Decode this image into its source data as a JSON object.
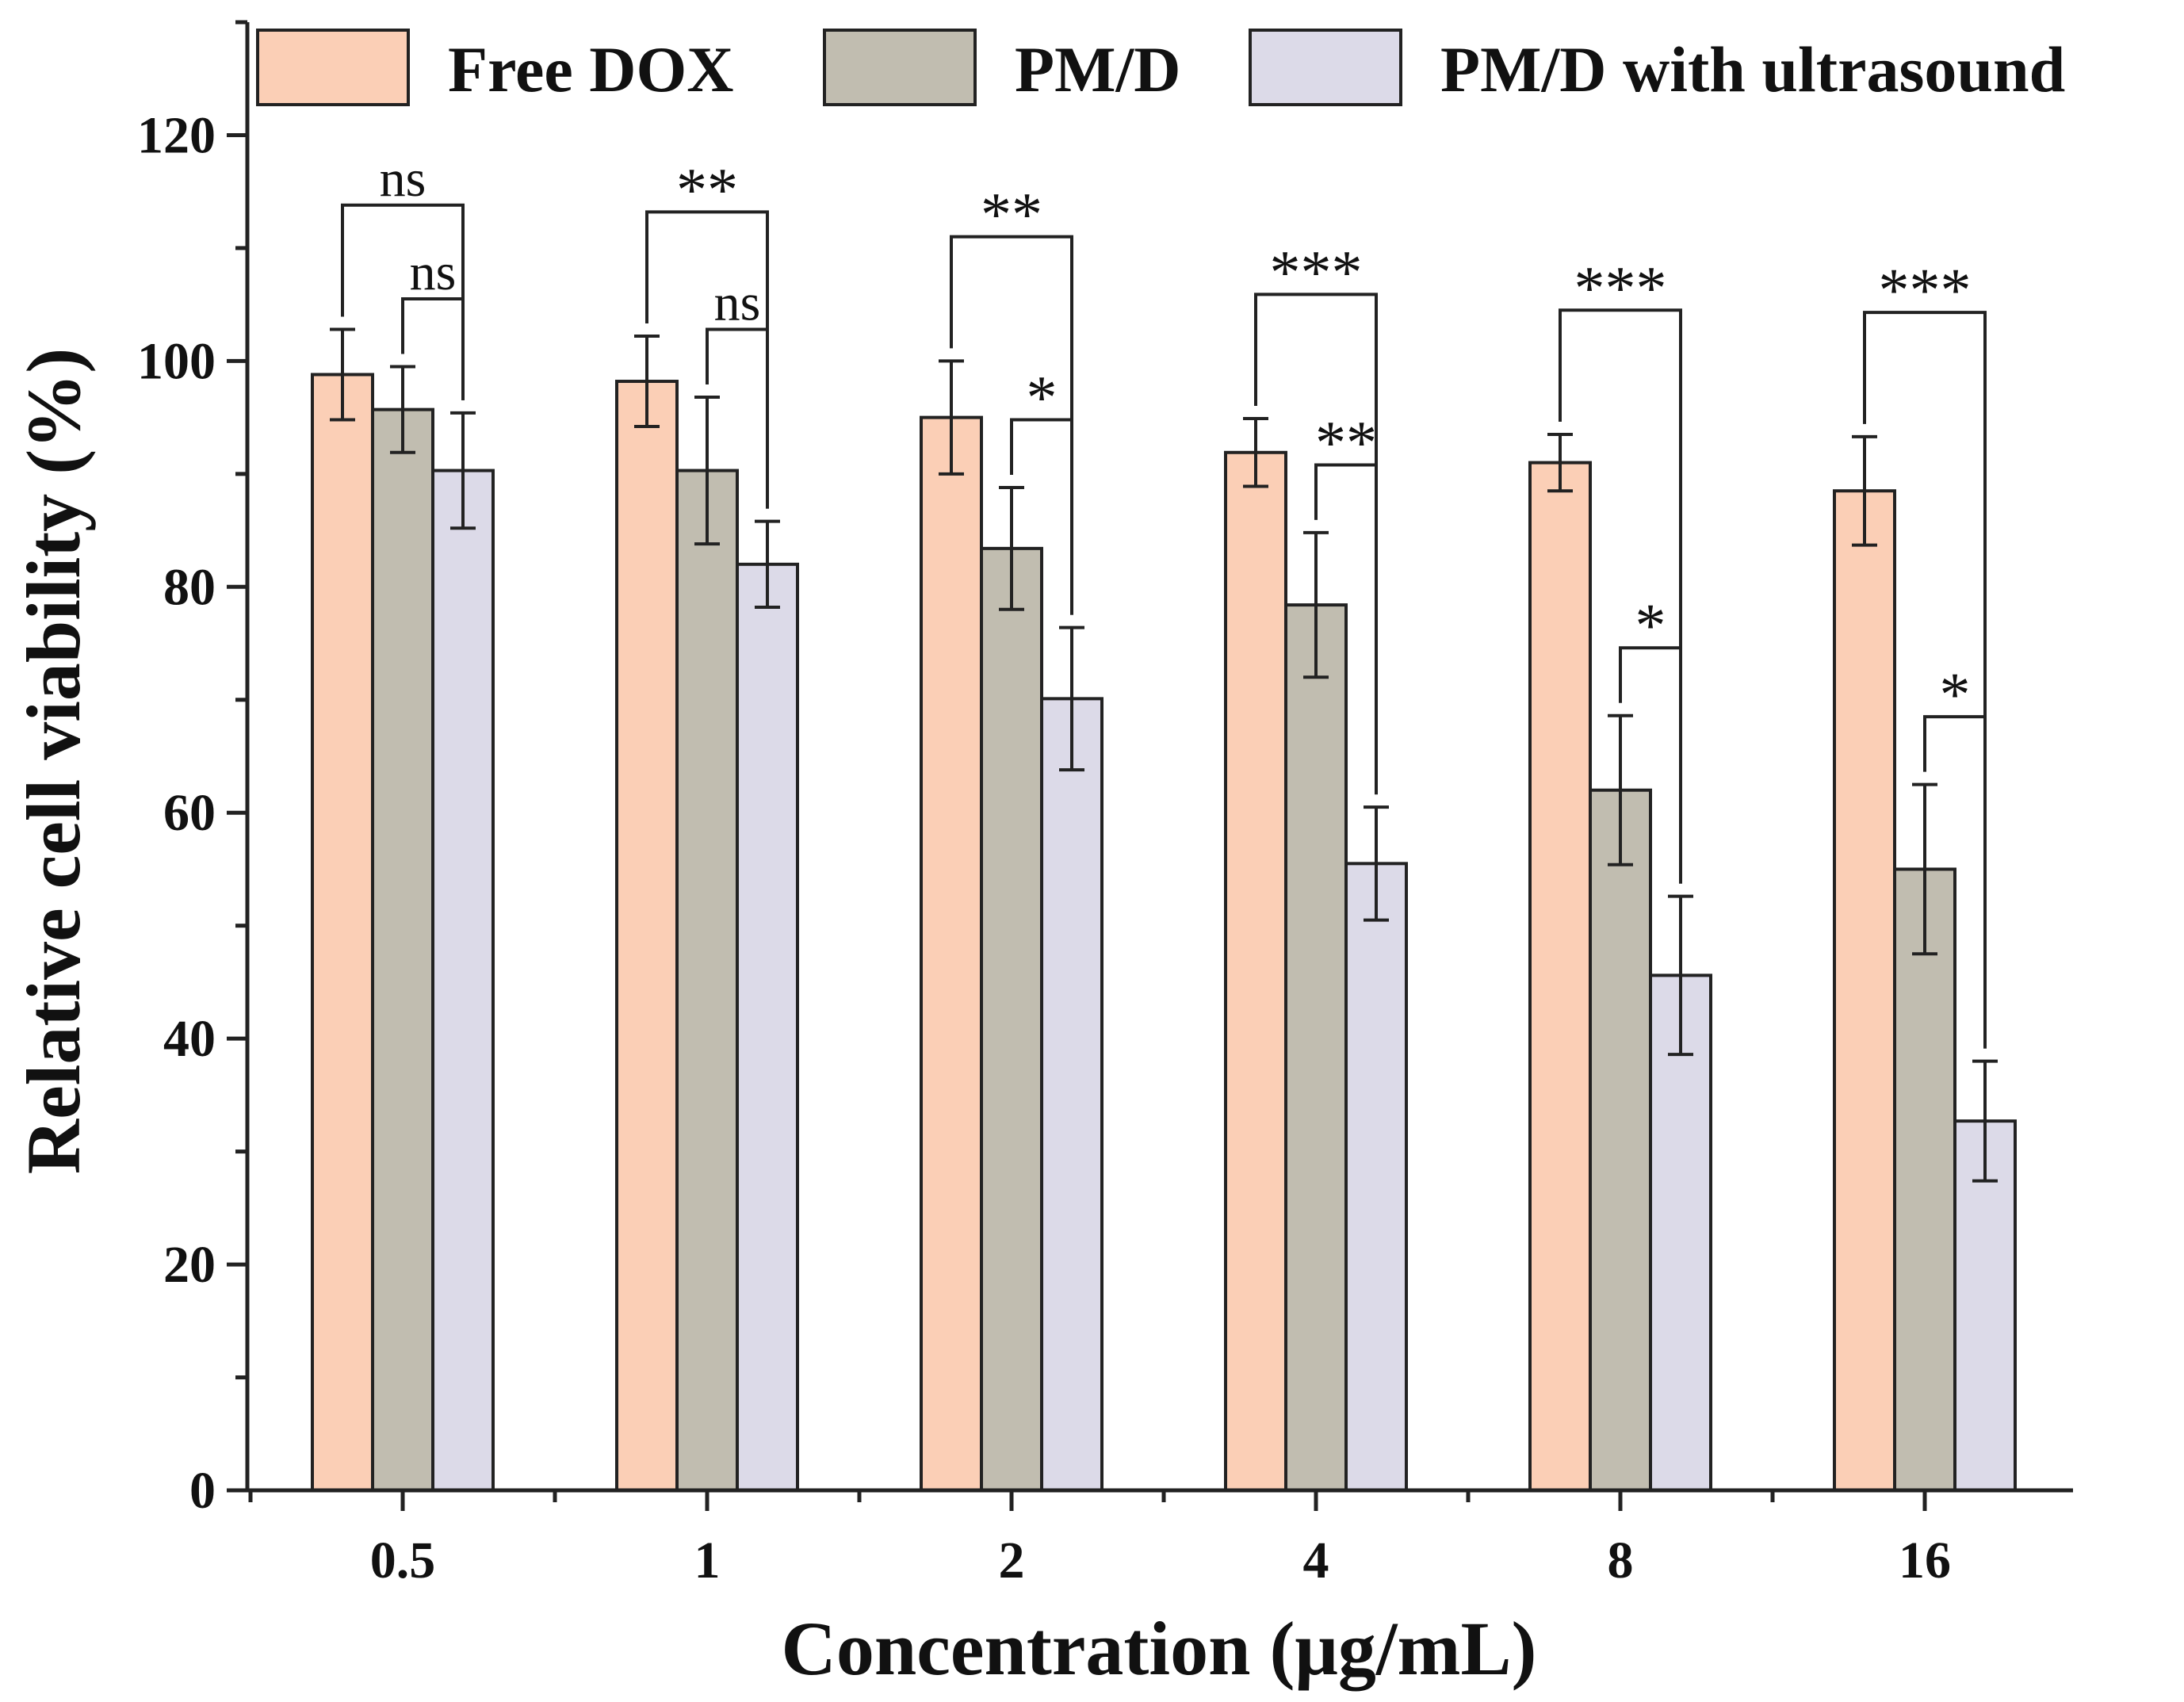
{
  "chart_data": {
    "type": "bar",
    "title": "",
    "xlabel": "Concentration (μg/mL)",
    "ylabel": "Relative cell viability (%)",
    "ylim": [
      0,
      130
    ],
    "yticks": [
      0,
      20,
      40,
      60,
      80,
      100,
      120
    ],
    "categories": [
      "0.5",
      "1",
      "2",
      "4",
      "8",
      "16"
    ],
    "legend_position": "top",
    "grid": false,
    "series": [
      {
        "name": "Free DOX",
        "color": "#FBCFB6",
        "values": [
          98.8,
          98.2,
          95.0,
          91.9,
          91.0,
          88.5
        ],
        "errors": [
          4.0,
          4.0,
          5.0,
          3.0,
          2.5,
          4.8
        ]
      },
      {
        "name": "PM/D",
        "color": "#C1BDB0",
        "values": [
          95.7,
          90.3,
          83.4,
          78.4,
          62.0,
          55.0
        ],
        "errors": [
          3.8,
          6.5,
          5.4,
          6.4,
          6.6,
          7.5
        ]
      },
      {
        "name": "PM/D with ultrasound",
        "color": "#DCDAE8",
        "values": [
          90.3,
          82.0,
          70.1,
          55.5,
          45.6,
          32.7
        ],
        "errors": [
          5.1,
          3.8,
          6.3,
          5.0,
          7.0,
          5.3
        ]
      }
    ],
    "significance": [
      {
        "category": "0.5",
        "from": 0,
        "to": 2,
        "label": "ns"
      },
      {
        "category": "0.5",
        "from": 1,
        "to": 2,
        "label": "ns"
      },
      {
        "category": "1",
        "from": 0,
        "to": 2,
        "label": "**"
      },
      {
        "category": "1",
        "from": 1,
        "to": 2,
        "label": "ns"
      },
      {
        "category": "2",
        "from": 0,
        "to": 2,
        "label": "**"
      },
      {
        "category": "2",
        "from": 1,
        "to": 2,
        "label": "*"
      },
      {
        "category": "4",
        "from": 0,
        "to": 2,
        "label": "***"
      },
      {
        "category": "4",
        "from": 1,
        "to": 2,
        "label": "**"
      },
      {
        "category": "8",
        "from": 0,
        "to": 2,
        "label": "***"
      },
      {
        "category": "8",
        "from": 1,
        "to": 2,
        "label": "*"
      },
      {
        "category": "16",
        "from": 0,
        "to": 2,
        "label": "***"
      },
      {
        "category": "16",
        "from": 1,
        "to": 2,
        "label": "*"
      }
    ]
  }
}
